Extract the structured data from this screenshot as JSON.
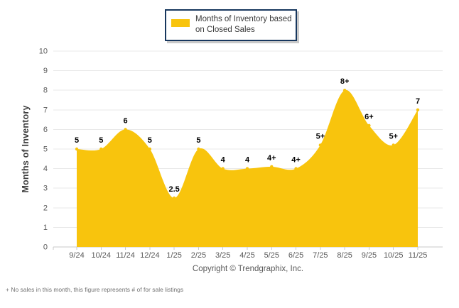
{
  "legend": {
    "label": "Months of Inventory based on Closed Sales",
    "label_line1": "Months of Inventory based",
    "label_line2": "on Closed Sales",
    "swatch_color": "#F8C40D"
  },
  "chart_data": {
    "type": "area",
    "title": "",
    "categories": [
      "9/24",
      "10/24",
      "11/24",
      "12/24",
      "1/25",
      "2/25",
      "3/25",
      "4/25",
      "5/25",
      "6/25",
      "7/25",
      "8/25",
      "9/25",
      "10/25",
      "11/25"
    ],
    "series": [
      {
        "name": "Months of Inventory based on Closed Sales",
        "values": [
          5,
          5,
          6,
          5,
          2.5,
          5,
          4,
          4,
          4.1,
          4,
          5.2,
          8,
          6.2,
          5.2,
          7
        ],
        "point_labels": [
          "5",
          "5",
          "6",
          "5",
          "2.5",
          "5",
          "4",
          "4",
          "4+",
          "4+",
          "5+",
          "8+",
          "6+",
          "5+",
          "7"
        ],
        "color": "#F8C40D"
      }
    ],
    "xlabel": "",
    "ylabel": "Months of Inventory",
    "ylim": [
      0,
      10
    ],
    "yticks": [
      0,
      1,
      2,
      3,
      4,
      5,
      6,
      7,
      8,
      9,
      10
    ],
    "grid": true,
    "smooth": true,
    "legend_position": "top-center"
  },
  "footer": {
    "copyright": "Copyright © Trendgraphix, Inc.",
    "note": "+ No sales in this month, this figure represents # of for sale listings"
  },
  "colors": {
    "series_fill": "#F8C40D",
    "grid_line": "#E8E8E8",
    "axis_line": "#C9C9C9",
    "tick_label": "#595959",
    "data_label": "#000000",
    "legend_border": "#17375E",
    "footer_text": "#595959"
  }
}
